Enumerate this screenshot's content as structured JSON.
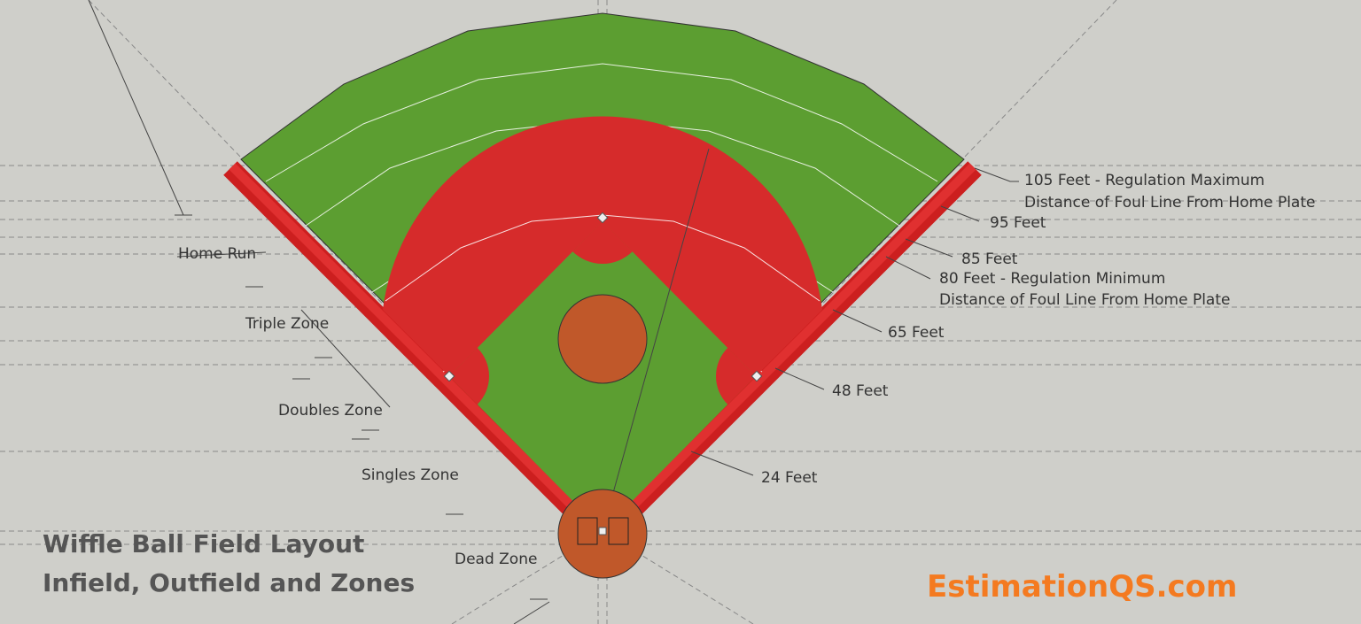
{
  "header": {
    "title": "Wiffle Ball Field Layout",
    "subtitle": "Infield, Outfield and Zones"
  },
  "brand": "EstimationQS.com",
  "zones": [
    "Home Run",
    "Triple Zone",
    "Doubles Zone",
    "Singles Zone",
    "Dead Zone"
  ],
  "distances": [
    [
      "105 Feet - Regulation Maximum",
      "Distance of Foul Line From Home Plate"
    ],
    [
      "95 Feet"
    ],
    [
      "85 Feet"
    ],
    [
      "80 Feet - Regulation Minimum",
      "Distance of Foul Line From Home Plate"
    ],
    [
      "65 Feet"
    ],
    [
      "48 Feet"
    ],
    [
      "24 Feet"
    ]
  ]
}
